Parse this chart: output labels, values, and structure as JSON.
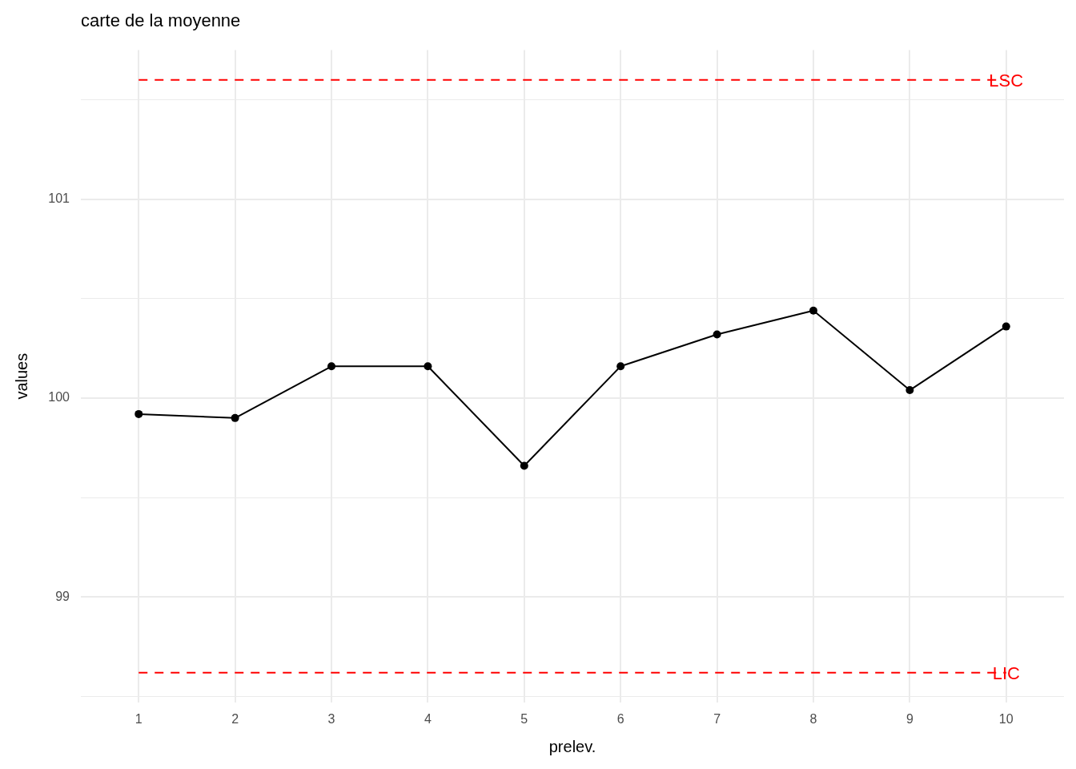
{
  "chart_data": {
    "type": "line",
    "title": "carte de la moyenne",
    "xlabel": "prelev.",
    "ylabel": "values",
    "categories": [
      "1",
      "2",
      "3",
      "4",
      "5",
      "6",
      "7",
      "8",
      "9",
      "10"
    ],
    "values": [
      99.92,
      99.9,
      100.16,
      100.16,
      99.66,
      100.16,
      100.32,
      100.44,
      100.04,
      100.36
    ],
    "color": "#000000",
    "marker": "circle",
    "line_style": "solid",
    "ylim": [
      98.47,
      101.75
    ],
    "yticks": [
      {
        "value": 98.5,
        "label": null
      },
      99,
      {
        "value": 99.5,
        "label": null
      },
      100,
      {
        "value": 100.5,
        "label": null
      },
      101,
      {
        "value": 101.5,
        "label": null
      }
    ],
    "grid": true,
    "ref_lines": [
      {
        "axis": "y",
        "value": 101.6,
        "label": "LSC",
        "color": "#ff0000",
        "line_style": "dashed"
      },
      {
        "axis": "y",
        "value": 98.62,
        "label": "LIC",
        "color": "#ff0000",
        "line_style": "dashed"
      }
    ]
  }
}
